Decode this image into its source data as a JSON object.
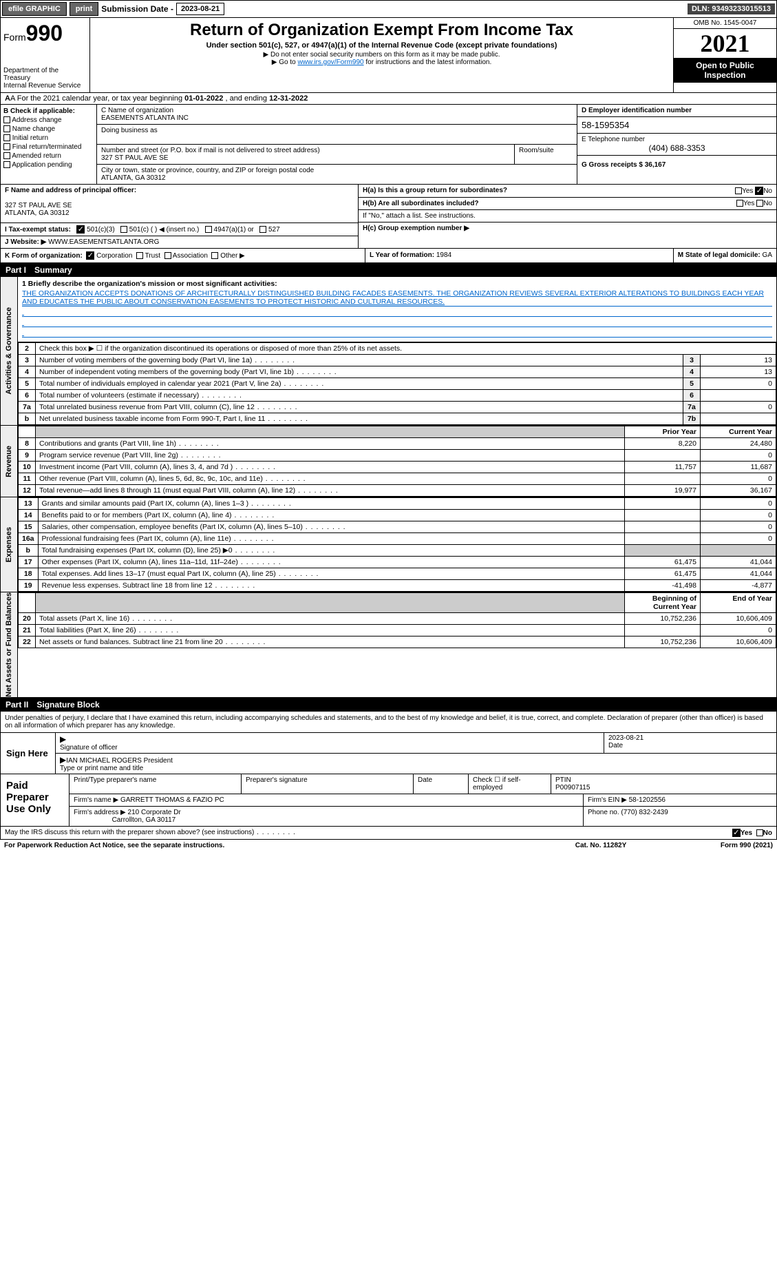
{
  "topbar": {
    "efile": "efile GRAPHIC",
    "print": "print",
    "sub_label": "Submission Date - ",
    "sub_date": "2023-08-21",
    "dln": "DLN: 93493233015513"
  },
  "header": {
    "form_prefix": "Form",
    "form_num": "990",
    "dept1": "Department of the Treasury",
    "dept2": "Internal Revenue Service",
    "title": "Return of Organization Exempt From Income Tax",
    "sub": "Under section 501(c), 527, or 4947(a)(1) of the Internal Revenue Code (except private foundations)",
    "note1": "▶ Do not enter social security numbers on this form as it may be made public.",
    "note2_pre": "▶ Go to ",
    "note2_link": "www.irs.gov/Form990",
    "note2_post": " for instructions and the latest information.",
    "omb": "OMB No. 1545-0047",
    "year": "2021",
    "open": "Open to Public Inspection"
  },
  "rowA": {
    "text_pre": "A For the 2021 calendar year, or tax year beginning ",
    "begin": "01-01-2022",
    "mid": "   , and ending ",
    "end": "12-31-2022"
  },
  "colB": {
    "title": "B Check if applicable:",
    "items": [
      "Address change",
      "Name change",
      "Initial return",
      "Final return/terminated",
      "Amended return",
      "Application pending"
    ]
  },
  "colC": {
    "name_lbl": "C Name of organization",
    "name": "EASEMENTS ATLANTA INC",
    "dba_lbl": "Doing business as",
    "dba": "",
    "addr_lbl": "Number and street (or P.O. box if mail is not delivered to street address)",
    "room_lbl": "Room/suite",
    "addr": "327 ST PAUL AVE SE",
    "city_lbl": "City or town, state or province, country, and ZIP or foreign postal code",
    "city": "ATLANTA, GA  30312"
  },
  "colD": {
    "ein_lbl": "D Employer identification number",
    "ein": "58-1595354",
    "tel_lbl": "E Telephone number",
    "tel": "(404) 688-3353",
    "gross_lbl": "G Gross receipts $ ",
    "gross": "36,167"
  },
  "sectionF": {
    "f_lbl": "F  Name and address of principal officer:",
    "f_addr1": "327 ST PAUL AVE SE",
    "f_addr2": "ATLANTA, GA  30312",
    "i_lbl": "I  Tax-exempt status:",
    "i_501c3": "501(c)(3)",
    "i_501c": "501(c) (  ) ◀ (insert no.)",
    "i_4947": "4947(a)(1) or",
    "i_527": "527",
    "j_lbl": "J  Website: ▶",
    "j_val": " WWW.EASEMENTSATLANTA.ORG"
  },
  "sectionH": {
    "ha": "H(a)  Is this a group return for subordinates?",
    "hb": "H(b)  Are all subordinates included?",
    "hb_note": "If \"No,\" attach a list. See instructions.",
    "hc": "H(c)  Group exemption number ▶",
    "yes": "Yes",
    "no": "No"
  },
  "rowK": {
    "k": "K Form of organization:",
    "corp": "Corporation",
    "trust": "Trust",
    "assoc": "Association",
    "other": "Other ▶",
    "l": "L Year of formation: ",
    "l_val": "1984",
    "m": "M State of legal domicile: ",
    "m_val": "GA"
  },
  "part1": {
    "num": "Part I",
    "title": "Summary"
  },
  "mission": {
    "q1": "1  Briefly describe the organization's mission or most significant activities:",
    "text": "THE ORGANIZATION ACCEPTS DONATIONS OF ARCHITECTURALLY DISTINGUISHED BUILDING FACADES EASEMENTS. THE ORGANIZATION REVIEWS SEVERAL EXTERIOR ALTERATIONS TO BUILDINGS EACH YEAR AND EDUCATES THE PUBLIC ABOUT CONSERVATION EASEMENTS TO PROTECT HISTORIC AND CULTURAL RESOURCES."
  },
  "gov_rows": [
    {
      "n": "2",
      "desc": "Check this box ▶ ☐  if the organization discontinued its operations or disposed of more than 25% of its net assets.",
      "c": "",
      "v": ""
    },
    {
      "n": "3",
      "desc": "Number of voting members of the governing body (Part VI, line 1a)",
      "c": "3",
      "v": "13"
    },
    {
      "n": "4",
      "desc": "Number of independent voting members of the governing body (Part VI, line 1b)",
      "c": "4",
      "v": "13"
    },
    {
      "n": "5",
      "desc": "Total number of individuals employed in calendar year 2021 (Part V, line 2a)",
      "c": "5",
      "v": "0"
    },
    {
      "n": "6",
      "desc": "Total number of volunteers (estimate if necessary)",
      "c": "6",
      "v": ""
    },
    {
      "n": "7a",
      "desc": "Total unrelated business revenue from Part VIII, column (C), line 12",
      "c": "7a",
      "v": "0"
    },
    {
      "n": "b",
      "desc": "Net unrelated business taxable income from Form 990-T, Part I, line 11",
      "c": "7b",
      "v": ""
    }
  ],
  "rev_hdr": {
    "py": "Prior Year",
    "cy": "Current Year"
  },
  "rev_rows": [
    {
      "n": "8",
      "desc": "Contributions and grants (Part VIII, line 1h)",
      "py": "8,220",
      "cy": "24,480"
    },
    {
      "n": "9",
      "desc": "Program service revenue (Part VIII, line 2g)",
      "py": "",
      "cy": "0"
    },
    {
      "n": "10",
      "desc": "Investment income (Part VIII, column (A), lines 3, 4, and 7d )",
      "py": "11,757",
      "cy": "11,687"
    },
    {
      "n": "11",
      "desc": "Other revenue (Part VIII, column (A), lines 5, 6d, 8c, 9c, 10c, and 11e)",
      "py": "",
      "cy": "0"
    },
    {
      "n": "12",
      "desc": "Total revenue—add lines 8 through 11 (must equal Part VIII, column (A), line 12)",
      "py": "19,977",
      "cy": "36,167"
    }
  ],
  "exp_rows": [
    {
      "n": "13",
      "desc": "Grants and similar amounts paid (Part IX, column (A), lines 1–3 )",
      "py": "",
      "cy": "0"
    },
    {
      "n": "14",
      "desc": "Benefits paid to or for members (Part IX, column (A), line 4)",
      "py": "",
      "cy": "0"
    },
    {
      "n": "15",
      "desc": "Salaries, other compensation, employee benefits (Part IX, column (A), lines 5–10)",
      "py": "",
      "cy": "0"
    },
    {
      "n": "16a",
      "desc": "Professional fundraising fees (Part IX, column (A), line 11e)",
      "py": "",
      "cy": "0"
    },
    {
      "n": "b",
      "desc": "Total fundraising expenses (Part IX, column (D), line 25) ▶0",
      "py": "grey",
      "cy": "grey"
    },
    {
      "n": "17",
      "desc": "Other expenses (Part IX, column (A), lines 11a–11d, 11f–24e)",
      "py": "61,475",
      "cy": "41,044"
    },
    {
      "n": "18",
      "desc": "Total expenses. Add lines 13–17 (must equal Part IX, column (A), line 25)",
      "py": "61,475",
      "cy": "41,044"
    },
    {
      "n": "19",
      "desc": "Revenue less expenses. Subtract line 18 from line 12",
      "py": "-41,498",
      "cy": "-4,877"
    }
  ],
  "na_hdr": {
    "py": "Beginning of Current Year",
    "cy": "End of Year"
  },
  "na_rows": [
    {
      "n": "20",
      "desc": "Total assets (Part X, line 16)",
      "py": "10,752,236",
      "cy": "10,606,409"
    },
    {
      "n": "21",
      "desc": "Total liabilities (Part X, line 26)",
      "py": "",
      "cy": "0"
    },
    {
      "n": "22",
      "desc": "Net assets or fund balances. Subtract line 21 from line 20",
      "py": "10,752,236",
      "cy": "10,606,409"
    }
  ],
  "vlabels": {
    "gov": "Activities & Governance",
    "rev": "Revenue",
    "exp": "Expenses",
    "na": "Net Assets or Fund Balances"
  },
  "part2": {
    "num": "Part II",
    "title": "Signature Block",
    "declare": "Under penalties of perjury, I declare that I have examined this return, including accompanying schedules and statements, and to the best of my knowledge and belief, it is true, correct, and complete. Declaration of preparer (other than officer) is based on all information of which preparer has any knowledge.",
    "sign_here": "Sign Here",
    "sig_officer": "Signature of officer",
    "date": "Date",
    "sig_date": "2023-08-21",
    "name_title": "IAN MICHAEL ROGERS  President",
    "type_name": "Type or print name and title"
  },
  "prep": {
    "title": "Paid Preparer Use Only",
    "pn_lbl": "Print/Type preparer's name",
    "ps_lbl": "Preparer's signature",
    "date_lbl": "Date",
    "check_lbl": "Check ☐ if self-employed",
    "ptin_lbl": "PTIN",
    "ptin": "P00907115",
    "firm_lbl": "Firm's name   ▶ ",
    "firm": "GARRETT THOMAS & FAZIO PC",
    "ein_lbl": "Firm's EIN ▶ ",
    "ein": "58-1202556",
    "addr_lbl": "Firm's address ▶ ",
    "addr1": "210 Corporate Dr",
    "addr2": "Carrollton, GA  30117",
    "phone_lbl": "Phone no. ",
    "phone": "(770) 832-2439"
  },
  "footer": {
    "discuss": "May the IRS discuss this return with the preparer shown above? (see instructions)",
    "yes": "Yes",
    "no": "No",
    "pra": "For Paperwork Reduction Act Notice, see the separate instructions.",
    "cat": "Cat. No. 11282Y",
    "form": "Form 990 (2021)"
  }
}
